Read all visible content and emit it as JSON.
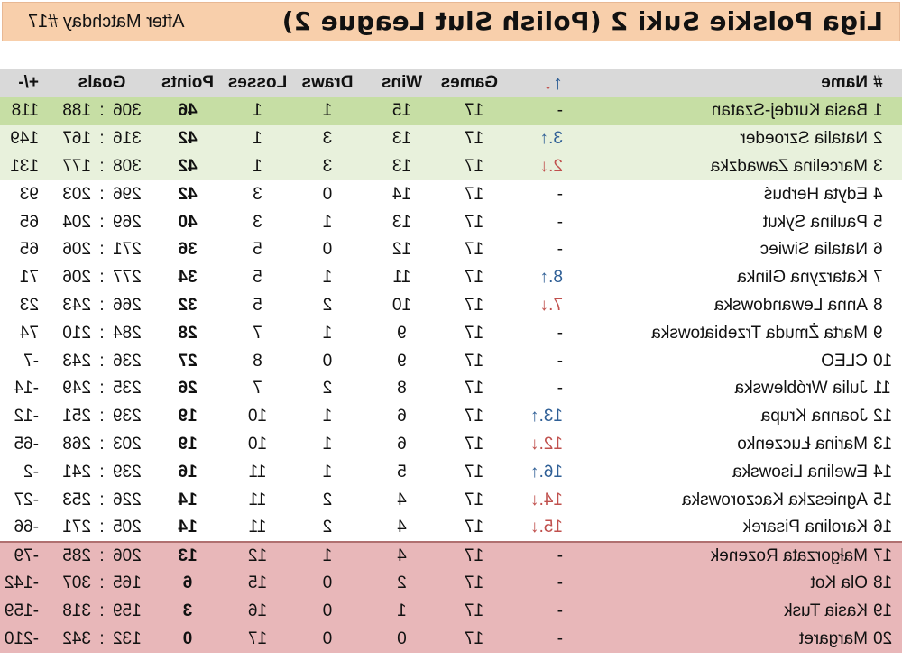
{
  "header": {
    "title": "Liga Polskie Suki 2 (Polish Slut League 2)",
    "matchday": "After Matchday #17"
  },
  "columns": {
    "num": "#",
    "name": "Name",
    "arrow_up": "↑",
    "arrow_down": "↓",
    "games": "Games",
    "wins": "Wins",
    "draws": "Draws",
    "losses": "Losses",
    "points": "Points",
    "goals": "Goals",
    "diff": "+/-"
  },
  "colors": {
    "title_bg": "#f8cfab",
    "first_place_bg": "#c6dea4",
    "top_zone_bg": "#e8f1dc",
    "bottom_zone_bg": "#e8b7b9",
    "up_arrow": "#2f5f96",
    "down_arrow": "#c0504d"
  },
  "rows": [
    {
      "pos": "1",
      "name": "Basia Kurdej-Szatan",
      "move": "-",
      "dir": "none",
      "games": "17",
      "wins": "15",
      "draws": "1",
      "losses": "1",
      "points": "46",
      "gf": "306",
      "ga": "188",
      "diff": "118",
      "zone": "top1"
    },
    {
      "pos": "2",
      "name": "Natalia Szroeder",
      "move": "3.↑",
      "dir": "up",
      "games": "17",
      "wins": "13",
      "draws": "3",
      "losses": "1",
      "points": "42",
      "gf": "316",
      "ga": "167",
      "diff": "149",
      "zone": "top"
    },
    {
      "pos": "3",
      "name": "Marcelina Zawadzka",
      "move": "2.↓",
      "dir": "down",
      "games": "17",
      "wins": "13",
      "draws": "3",
      "losses": "1",
      "points": "42",
      "gf": "308",
      "ga": "177",
      "diff": "131",
      "zone": "top"
    },
    {
      "pos": "4",
      "name": "Edyta Herbuś",
      "move": "-",
      "dir": "none",
      "games": "17",
      "wins": "14",
      "draws": "0",
      "losses": "3",
      "points": "42",
      "gf": "296",
      "ga": "203",
      "diff": "93",
      "zone": "none"
    },
    {
      "pos": "5",
      "name": "Paulina Sykut",
      "move": "-",
      "dir": "none",
      "games": "17",
      "wins": "13",
      "draws": "1",
      "losses": "3",
      "points": "40",
      "gf": "269",
      "ga": "204",
      "diff": "65",
      "zone": "none"
    },
    {
      "pos": "6",
      "name": "Natalia Siwiec",
      "move": "-",
      "dir": "none",
      "games": "17",
      "wins": "12",
      "draws": "0",
      "losses": "5",
      "points": "36",
      "gf": "271",
      "ga": "206",
      "diff": "65",
      "zone": "none"
    },
    {
      "pos": "7",
      "name": "Katarzyna Glinka",
      "move": "8.↑",
      "dir": "up",
      "games": "17",
      "wins": "11",
      "draws": "1",
      "losses": "5",
      "points": "34",
      "gf": "277",
      "ga": "206",
      "diff": "71",
      "zone": "none"
    },
    {
      "pos": "8",
      "name": "Anna Lewandowska",
      "move": "7.↓",
      "dir": "down",
      "games": "17",
      "wins": "10",
      "draws": "2",
      "losses": "5",
      "points": "32",
      "gf": "266",
      "ga": "243",
      "diff": "23",
      "zone": "none"
    },
    {
      "pos": "9",
      "name": "Marta Żmuda Trzebiatowska",
      "move": "-",
      "dir": "none",
      "games": "17",
      "wins": "9",
      "draws": "1",
      "losses": "7",
      "points": "28",
      "gf": "284",
      "ga": "210",
      "diff": "74",
      "zone": "none"
    },
    {
      "pos": "10",
      "name": "CLEO",
      "move": "-",
      "dir": "none",
      "games": "17",
      "wins": "9",
      "draws": "0",
      "losses": "8",
      "points": "27",
      "gf": "236",
      "ga": "243",
      "diff": "-7",
      "zone": "none"
    },
    {
      "pos": "11",
      "name": "Julia Wróblewska",
      "move": "-",
      "dir": "none",
      "games": "17",
      "wins": "8",
      "draws": "2",
      "losses": "7",
      "points": "26",
      "gf": "235",
      "ga": "249",
      "diff": "-14",
      "zone": "none"
    },
    {
      "pos": "12",
      "name": "Joanna Krupa",
      "move": "13.↑",
      "dir": "up",
      "games": "17",
      "wins": "6",
      "draws": "1",
      "losses": "10",
      "points": "19",
      "gf": "239",
      "ga": "251",
      "diff": "-12",
      "zone": "none"
    },
    {
      "pos": "13",
      "name": "Marina Łuczenko",
      "move": "12.↓",
      "dir": "down",
      "games": "17",
      "wins": "6",
      "draws": "1",
      "losses": "10",
      "points": "19",
      "gf": "203",
      "ga": "268",
      "diff": "-65",
      "zone": "none"
    },
    {
      "pos": "14",
      "name": "Ewelina Lisowska",
      "move": "16.↑",
      "dir": "up",
      "games": "17",
      "wins": "5",
      "draws": "1",
      "losses": "11",
      "points": "16",
      "gf": "239",
      "ga": "241",
      "diff": "-2",
      "zone": "none"
    },
    {
      "pos": "15",
      "name": "Agnieszka Kaczorowska",
      "move": "14.↓",
      "dir": "down",
      "games": "17",
      "wins": "4",
      "draws": "2",
      "losses": "11",
      "points": "14",
      "gf": "226",
      "ga": "253",
      "diff": "-27",
      "zone": "none"
    },
    {
      "pos": "16",
      "name": "Karolina Pisarek",
      "move": "15.↓",
      "dir": "down",
      "games": "17",
      "wins": "4",
      "draws": "2",
      "losses": "11",
      "points": "14",
      "gf": "205",
      "ga": "271",
      "diff": "-66",
      "zone": "none"
    },
    {
      "pos": "17",
      "name": "Małgorzata Rozenek",
      "move": "-",
      "dir": "none",
      "games": "17",
      "wins": "4",
      "draws": "1",
      "losses": "12",
      "points": "13",
      "gf": "206",
      "ga": "285",
      "diff": "-79",
      "zone": "bottom"
    },
    {
      "pos": "18",
      "name": "Ola Kot",
      "move": "-",
      "dir": "none",
      "games": "17",
      "wins": "2",
      "draws": "0",
      "losses": "15",
      "points": "6",
      "gf": "165",
      "ga": "307",
      "diff": "-142",
      "zone": "bottom"
    },
    {
      "pos": "19",
      "name": "Kasia Tusk",
      "move": "-",
      "dir": "none",
      "games": "17",
      "wins": "1",
      "draws": "0",
      "losses": "16",
      "points": "3",
      "gf": "159",
      "ga": "318",
      "diff": "-159",
      "zone": "bottom"
    },
    {
      "pos": "20",
      "name": "Margaret",
      "move": "-",
      "dir": "none",
      "games": "17",
      "wins": "0",
      "draws": "0",
      "losses": "17",
      "points": "0",
      "gf": "132",
      "ga": "342",
      "diff": "-210",
      "zone": "bottom"
    }
  ]
}
